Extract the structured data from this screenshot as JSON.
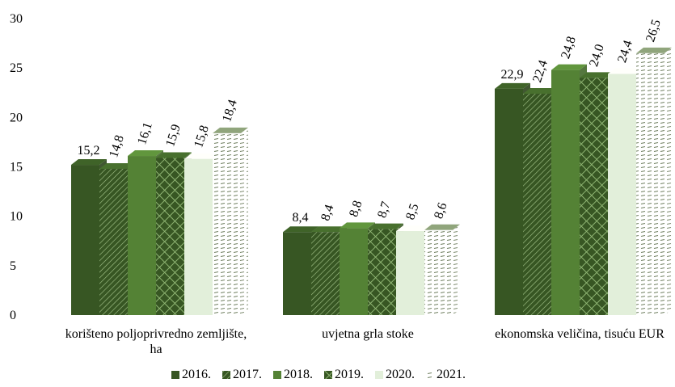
{
  "chart_data": {
    "type": "bar3d",
    "categories": [
      "korišteno poljoprivredno zemljište, ha",
      "uvjetna grla stoke",
      "ekonomska veličina, tisuću EUR"
    ],
    "ylim": [
      0,
      30
    ],
    "yticks": [
      0,
      5,
      10,
      15,
      20,
      25,
      30
    ],
    "legend": "bottom",
    "series": [
      {
        "name": "2016.",
        "color": "#375623",
        "pattern": "solid",
        "values": [
          15.2,
          8.4,
          22.9
        ],
        "value_labels": [
          "15,2",
          "8,4",
          "22,9"
        ]
      },
      {
        "name": "2017.",
        "color": "#375623",
        "pattern": "diagonal",
        "values": [
          14.8,
          8.4,
          22.4
        ],
        "value_labels": [
          "14,8",
          "8,4",
          "22,4"
        ]
      },
      {
        "name": "2018.",
        "color": "#548235",
        "pattern": "solid",
        "values": [
          16.1,
          8.8,
          24.8
        ],
        "value_labels": [
          "16,1",
          "8,8",
          "24,8"
        ]
      },
      {
        "name": "2019.",
        "color": "#375623",
        "pattern": "cross",
        "values": [
          15.9,
          8.7,
          24.0
        ],
        "value_labels": [
          "15,9",
          "8,7",
          "24,0"
        ]
      },
      {
        "name": "2020.",
        "color": "#e2efda",
        "pattern": "solid",
        "values": [
          15.8,
          8.5,
          24.4
        ],
        "value_labels": [
          "15,8",
          "8,5",
          "24,4"
        ]
      },
      {
        "name": "2021.",
        "color": "#6f7f5f",
        "pattern": "dash",
        "values": [
          18.4,
          8.6,
          26.5
        ],
        "value_labels": [
          "18,4",
          "8,6",
          "26,5"
        ]
      }
    ]
  }
}
